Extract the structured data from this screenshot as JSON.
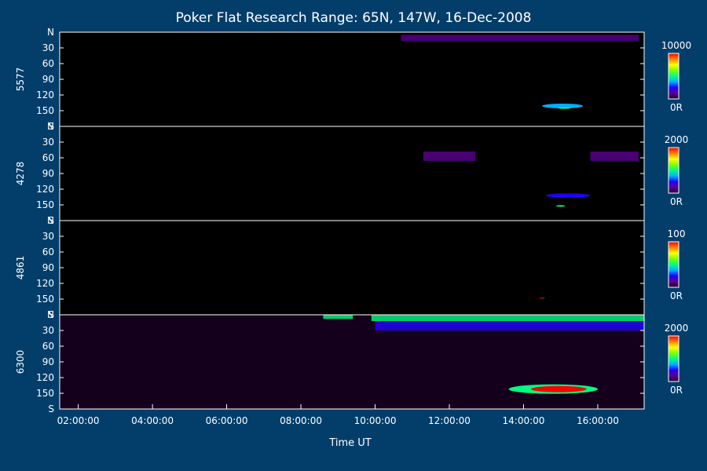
{
  "chart_data": {
    "type": "heatmap",
    "title": "Poker Flat Research Range: 65N, 147W, 16-Dec-2008",
    "xlabel": "Time UT",
    "x_ticks": [
      "02:00:00",
      "04:00:00",
      "06:00:00",
      "08:00:00",
      "10:00:00",
      "12:00:00",
      "14:00:00",
      "16:00:00"
    ],
    "x_range_hours": [
      1.5,
      17.25
    ],
    "y_ticks": [
      "N",
      "30",
      "60",
      "90",
      "120",
      "150",
      "S"
    ],
    "y_tick_values": [
      0,
      30,
      60,
      90,
      120,
      150,
      180
    ],
    "colormap": [
      "#200030",
      "#5a0090",
      "#2000ff",
      "#00b0ff",
      "#00ff80",
      "#80ff00",
      "#ffff00",
      "#ff8000",
      "#ff0000"
    ],
    "panels": [
      {
        "name": "5577",
        "scale_max": "10000",
        "scale_min": "0R",
        "features": [
          {
            "kind": "band",
            "t_start": 10.7,
            "t_end": 17.1,
            "angle_start": 5,
            "angle_end": 17,
            "level": 0.12
          },
          {
            "kind": "spot",
            "t_center": 15.05,
            "angle_center": 141,
            "t_width": 1.1,
            "angle_width": 9,
            "level": 0.35
          },
          {
            "kind": "spot",
            "t_center": 15.1,
            "angle_center": 145,
            "t_width": 0.35,
            "angle_width": 3,
            "level": 0.55
          }
        ]
      },
      {
        "name": "4278",
        "scale_max": "2000",
        "scale_min": "0R",
        "features": [
          {
            "kind": "band",
            "t_start": 11.3,
            "t_end": 12.7,
            "angle_start": 48,
            "angle_end": 66,
            "level": 0.1
          },
          {
            "kind": "band",
            "t_start": 15.8,
            "t_end": 17.1,
            "angle_start": 48,
            "angle_end": 66,
            "level": 0.1
          },
          {
            "kind": "spot",
            "t_center": 15.2,
            "angle_center": 132,
            "t_width": 1.2,
            "angle_width": 8,
            "level": 0.2
          },
          {
            "kind": "spot",
            "t_center": 15.0,
            "angle_center": 152,
            "t_width": 0.25,
            "angle_width": 3,
            "level": 0.45
          }
        ]
      },
      {
        "name": "4861",
        "scale_max": "100",
        "scale_min": "0R",
        "features": [
          {
            "kind": "spot",
            "t_center": 14.5,
            "angle_center": 148,
            "t_width": 0.15,
            "angle_width": 2,
            "level": 0.95
          }
        ]
      },
      {
        "name": "6300",
        "scale_max": "2000",
        "scale_min": "0R",
        "features": [
          {
            "kind": "band",
            "t_start": 8.6,
            "t_end": 9.4,
            "angle_start": 0,
            "angle_end": 8,
            "level": 0.45
          },
          {
            "kind": "band",
            "t_start": 9.9,
            "t_end": 17.25,
            "angle_start": 0,
            "angle_end": 12,
            "level": 0.5
          },
          {
            "kind": "band",
            "t_start": 10.0,
            "t_end": 17.25,
            "angle_start": 12,
            "angle_end": 30,
            "level": 0.3
          },
          {
            "kind": "spot",
            "t_center": 14.8,
            "angle_center": 142,
            "t_width": 2.4,
            "angle_width": 18,
            "level": 0.5
          },
          {
            "kind": "spot",
            "t_center": 14.95,
            "angle_center": 142,
            "t_width": 1.5,
            "angle_width": 12,
            "level": 0.95
          }
        ]
      }
    ]
  }
}
